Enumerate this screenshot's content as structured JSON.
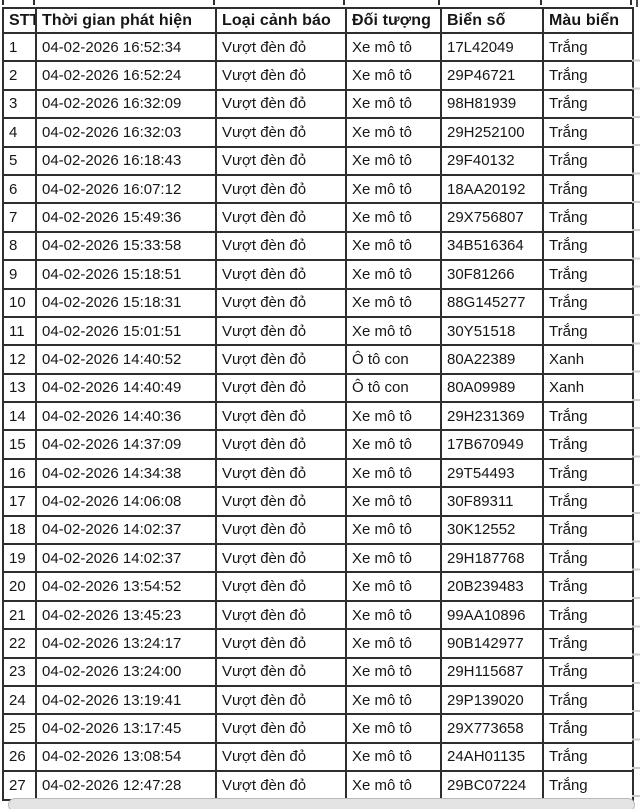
{
  "table": {
    "columns": [
      {
        "key": "stt",
        "label": "STT"
      },
      {
        "key": "time",
        "label": "Thời gian phát hiện"
      },
      {
        "key": "alert",
        "label": "Loại cảnh báo"
      },
      {
        "key": "object",
        "label": "Đối tượng"
      },
      {
        "key": "plate",
        "label": "Biển số"
      },
      {
        "key": "color",
        "label": "Màu biển"
      }
    ],
    "rows": [
      {
        "stt": "1",
        "time": "04-02-2026 16:52:34",
        "alert": "Vượt đèn đỏ",
        "object": "Xe mô tô",
        "plate": "17L42049",
        "color": "Trắng"
      },
      {
        "stt": "2",
        "time": "04-02-2026 16:52:24",
        "alert": "Vượt đèn đỏ",
        "object": "Xe mô tô",
        "plate": "29P46721",
        "color": "Trắng"
      },
      {
        "stt": "3",
        "time": "04-02-2026 16:32:09",
        "alert": "Vượt đèn đỏ",
        "object": "Xe mô tô",
        "plate": "98H81939",
        "color": "Trắng"
      },
      {
        "stt": "4",
        "time": "04-02-2026 16:32:03",
        "alert": "Vượt đèn đỏ",
        "object": "Xe mô tô",
        "plate": "29H252100",
        "color": "Trắng"
      },
      {
        "stt": "5",
        "time": "04-02-2026 16:18:43",
        "alert": "Vượt đèn đỏ",
        "object": "Xe mô tô",
        "plate": "29F40132",
        "color": "Trắng"
      },
      {
        "stt": "6",
        "time": "04-02-2026 16:07:12",
        "alert": "Vượt đèn đỏ",
        "object": "Xe mô tô",
        "plate": "18AA20192",
        "color": "Trắng"
      },
      {
        "stt": "7",
        "time": "04-02-2026 15:49:36",
        "alert": "Vượt đèn đỏ",
        "object": "Xe mô tô",
        "plate": "29X756807",
        "color": "Trắng"
      },
      {
        "stt": "8",
        "time": "04-02-2026 15:33:58",
        "alert": "Vượt đèn đỏ",
        "object": "Xe mô tô",
        "plate": "34B516364",
        "color": "Trắng"
      },
      {
        "stt": "9",
        "time": "04-02-2026 15:18:51",
        "alert": "Vượt đèn đỏ",
        "object": "Xe mô tô",
        "plate": "30F81266",
        "color": "Trắng"
      },
      {
        "stt": "10",
        "time": "04-02-2026 15:18:31",
        "alert": "Vượt đèn đỏ",
        "object": "Xe mô tô",
        "plate": "88G145277",
        "color": "Trắng"
      },
      {
        "stt": "11",
        "time": "04-02-2026 15:01:51",
        "alert": "Vượt đèn đỏ",
        "object": "Xe mô tô",
        "plate": "30Y51518",
        "color": "Trắng"
      },
      {
        "stt": "12",
        "time": "04-02-2026 14:40:52",
        "alert": "Vượt đèn đỏ",
        "object": "Ô tô con",
        "plate": "80A22389",
        "color": "Xanh"
      },
      {
        "stt": "13",
        "time": "04-02-2026 14:40:49",
        "alert": "Vượt đèn đỏ",
        "object": "Ô tô con",
        "plate": "80A09989",
        "color": "Xanh"
      },
      {
        "stt": "14",
        "time": "04-02-2026 14:40:36",
        "alert": "Vượt đèn đỏ",
        "object": "Xe mô tô",
        "plate": "29H231369",
        "color": "Trắng"
      },
      {
        "stt": "15",
        "time": "04-02-2026 14:37:09",
        "alert": "Vượt đèn đỏ",
        "object": "Xe mô tô",
        "plate": "17B670949",
        "color": "Trắng"
      },
      {
        "stt": "16",
        "time": "04-02-2026 14:34:38",
        "alert": "Vượt đèn đỏ",
        "object": "Xe mô tô",
        "plate": "29T54493",
        "color": "Trắng"
      },
      {
        "stt": "17",
        "time": "04-02-2026 14:06:08",
        "alert": "Vượt đèn đỏ",
        "object": "Xe mô tô",
        "plate": "30F89311",
        "color": "Trắng"
      },
      {
        "stt": "18",
        "time": "04-02-2026 14:02:37",
        "alert": "Vượt đèn đỏ",
        "object": "Xe mô tô",
        "plate": "30K12552",
        "color": "Trắng"
      },
      {
        "stt": "19",
        "time": "04-02-2026 14:02:37",
        "alert": "Vượt đèn đỏ",
        "object": "Xe mô tô",
        "plate": "29H187768",
        "color": "Trắng"
      },
      {
        "stt": "20",
        "time": "04-02-2026 13:54:52",
        "alert": "Vượt đèn đỏ",
        "object": "Xe mô tô",
        "plate": "20B239483",
        "color": "Trắng"
      },
      {
        "stt": "21",
        "time": "04-02-2026 13:45:23",
        "alert": "Vượt đèn đỏ",
        "object": "Xe mô tô",
        "plate": "99AA10896",
        "color": "Trắng"
      },
      {
        "stt": "22",
        "time": "04-02-2026 13:24:17",
        "alert": "Vượt đèn đỏ",
        "object": "Xe mô tô",
        "plate": "90B142977",
        "color": "Trắng"
      },
      {
        "stt": "23",
        "time": "04-02-2026 13:24:00",
        "alert": "Vượt đèn đỏ",
        "object": "Xe mô tô",
        "plate": "29H115687",
        "color": "Trắng"
      },
      {
        "stt": "24",
        "time": "04-02-2026 13:19:41",
        "alert": "Vượt đèn đỏ",
        "object": "Xe mô tô",
        "plate": "29P139020",
        "color": "Trắng"
      },
      {
        "stt": "25",
        "time": "04-02-2026 13:17:45",
        "alert": "Vượt đèn đỏ",
        "object": "Xe mô tô",
        "plate": "29X773658",
        "color": "Trắng"
      },
      {
        "stt": "26",
        "time": "04-02-2026 13:08:54",
        "alert": "Vượt đèn đỏ",
        "object": "Xe mô tô",
        "plate": "24AH01135",
        "color": "Trắng"
      },
      {
        "stt": "27",
        "time": "04-02-2026 12:47:28",
        "alert": "Vượt đèn đỏ",
        "object": "Xe mô tô",
        "plate": "29BC07224",
        "color": "Trắng"
      }
    ]
  },
  "colors": {
    "grid": "#2e2e2e",
    "text": "#161616",
    "cutoff_grid": "#c9c9c9",
    "scrollbar_fill": "#e4e4e4",
    "scrollbar_border": "#b9b9b9"
  }
}
